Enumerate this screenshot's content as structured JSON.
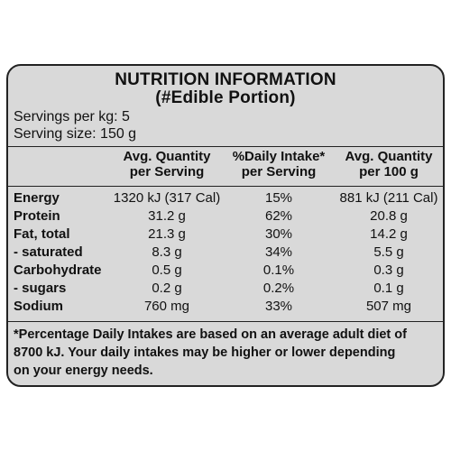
{
  "panel": {
    "title": "NUTRITION INFORMATION",
    "subtitle": "(#Edible Portion)",
    "servings_per_kg": "Servings per kg: 5",
    "serving_size": "Serving size: 150 g",
    "columns": [
      "Avg. Quantity",
      "per Serving",
      "%Daily Intake*",
      "per Serving",
      "Avg. Quantity",
      "per 100 g"
    ],
    "rows": [
      {
        "label": "Energy",
        "per_serving": "1320 kJ (317 Cal)",
        "daily_intake": "15%",
        "per_100g": "881 kJ (211 Cal)"
      },
      {
        "label": "Protein",
        "per_serving": "31.2 g",
        "daily_intake": "62%",
        "per_100g": "20.8 g"
      },
      {
        "label": "Fat, total",
        "per_serving": "21.3 g",
        "daily_intake": "30%",
        "per_100g": "14.2 g"
      },
      {
        "label": "- saturated",
        "per_serving": "8.3 g",
        "daily_intake": "34%",
        "per_100g": "5.5 g"
      },
      {
        "label": "Carbohydrate",
        "per_serving": "0.5 g",
        "daily_intake": "0.1%",
        "per_100g": "0.3 g"
      },
      {
        "label": "- sugars",
        "per_serving": "0.2 g",
        "daily_intake": "0.2%",
        "per_100g": "0.1 g"
      },
      {
        "label": "Sodium",
        "per_serving": "760 mg",
        "daily_intake": "33%",
        "per_100g": "507 mg"
      }
    ],
    "footnote": [
      "*Percentage Daily Intakes are based on an average adult diet of",
      "8700 kJ. Your daily intakes may be higher or lower depending",
      "on your energy needs."
    ]
  },
  "colors": {
    "panel_bg": "#d9d9d9",
    "border": "#222222",
    "text": "#111111"
  }
}
